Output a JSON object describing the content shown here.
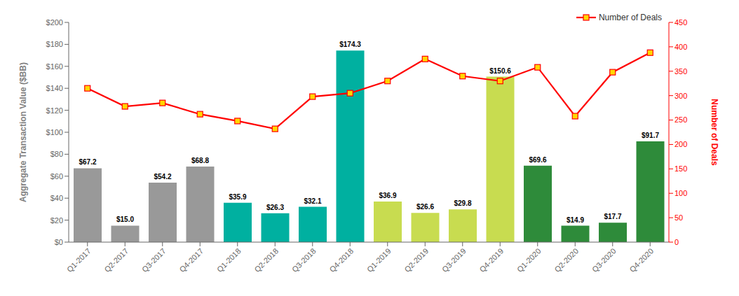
{
  "chart_data": {
    "type": "bar",
    "categories": [
      "Q1-2017",
      "Q2-2017",
      "Q3-2017",
      "Q4-2017",
      "Q1-2018",
      "Q2-2018",
      "Q3-2018",
      "Q4-2018",
      "Q1-2019",
      "Q2-2019",
      "Q3-2019",
      "Q4-2019",
      "Q1-2020",
      "Q2-2020",
      "Q3-2020",
      "Q4-2020"
    ],
    "series": [
      {
        "type": "bar",
        "values": [
          67.2,
          15.0,
          54.2,
          68.8,
          35.9,
          26.3,
          32.1,
          174.3,
          36.9,
          26.6,
          29.8,
          150.6,
          69.6,
          14.9,
          17.7,
          91.7
        ],
        "colors": [
          "#999999",
          "#999999",
          "#999999",
          "#999999",
          "#00B0A0",
          "#00B0A0",
          "#00B0A0",
          "#00B0A0",
          "#C8DC50",
          "#C8DC50",
          "#C8DC50",
          "#C8DC50",
          "#2E8B3A",
          "#2E8B3A",
          "#2E8B3A",
          "#2E8B3A"
        ],
        "data_labels": true,
        "value_labels": [
          "$67.2",
          "$15.0",
          "$54.2",
          "$68.8",
          "$35.9",
          "$26.3",
          "$32.1",
          "$174.3",
          "$36.9",
          "$26.6",
          "$29.8",
          "$150.6",
          "$69.6",
          "$14.9",
          "$17.7",
          "$91.7"
        ]
      },
      {
        "type": "line",
        "name": "Number of Deals",
        "color": "#FF0000",
        "marker": "square",
        "axis": "y2",
        "values": [
          315,
          278,
          285,
          262,
          248,
          232,
          298,
          305,
          330,
          375,
          340,
          330,
          358,
          258,
          348,
          388
        ]
      }
    ],
    "ylabel": "Aggregate Transaction Value ($BB)",
    "y2label": "Number of Deals",
    "ylim": [
      0,
      200
    ],
    "yticks": [
      {
        "value": 0,
        "label": "$0"
      },
      {
        "value": 20,
        "label": "$20"
      },
      {
        "value": 40,
        "label": "$40"
      },
      {
        "value": 60,
        "label": "$60"
      },
      {
        "value": 80,
        "label": "$80"
      },
      {
        "value": 100,
        "label": "$100"
      },
      {
        "value": 120,
        "label": "$120"
      },
      {
        "value": 140,
        "label": "$140"
      },
      {
        "value": 160,
        "label": "$160"
      },
      {
        "value": 180,
        "label": "$180"
      },
      {
        "value": 200,
        "label": "$200"
      }
    ],
    "y2lim": [
      0,
      450
    ],
    "y2ticks": [
      0,
      50,
      100,
      150,
      200,
      250,
      300,
      350,
      400,
      450
    ],
    "legend": "upper right",
    "grid": false
  }
}
